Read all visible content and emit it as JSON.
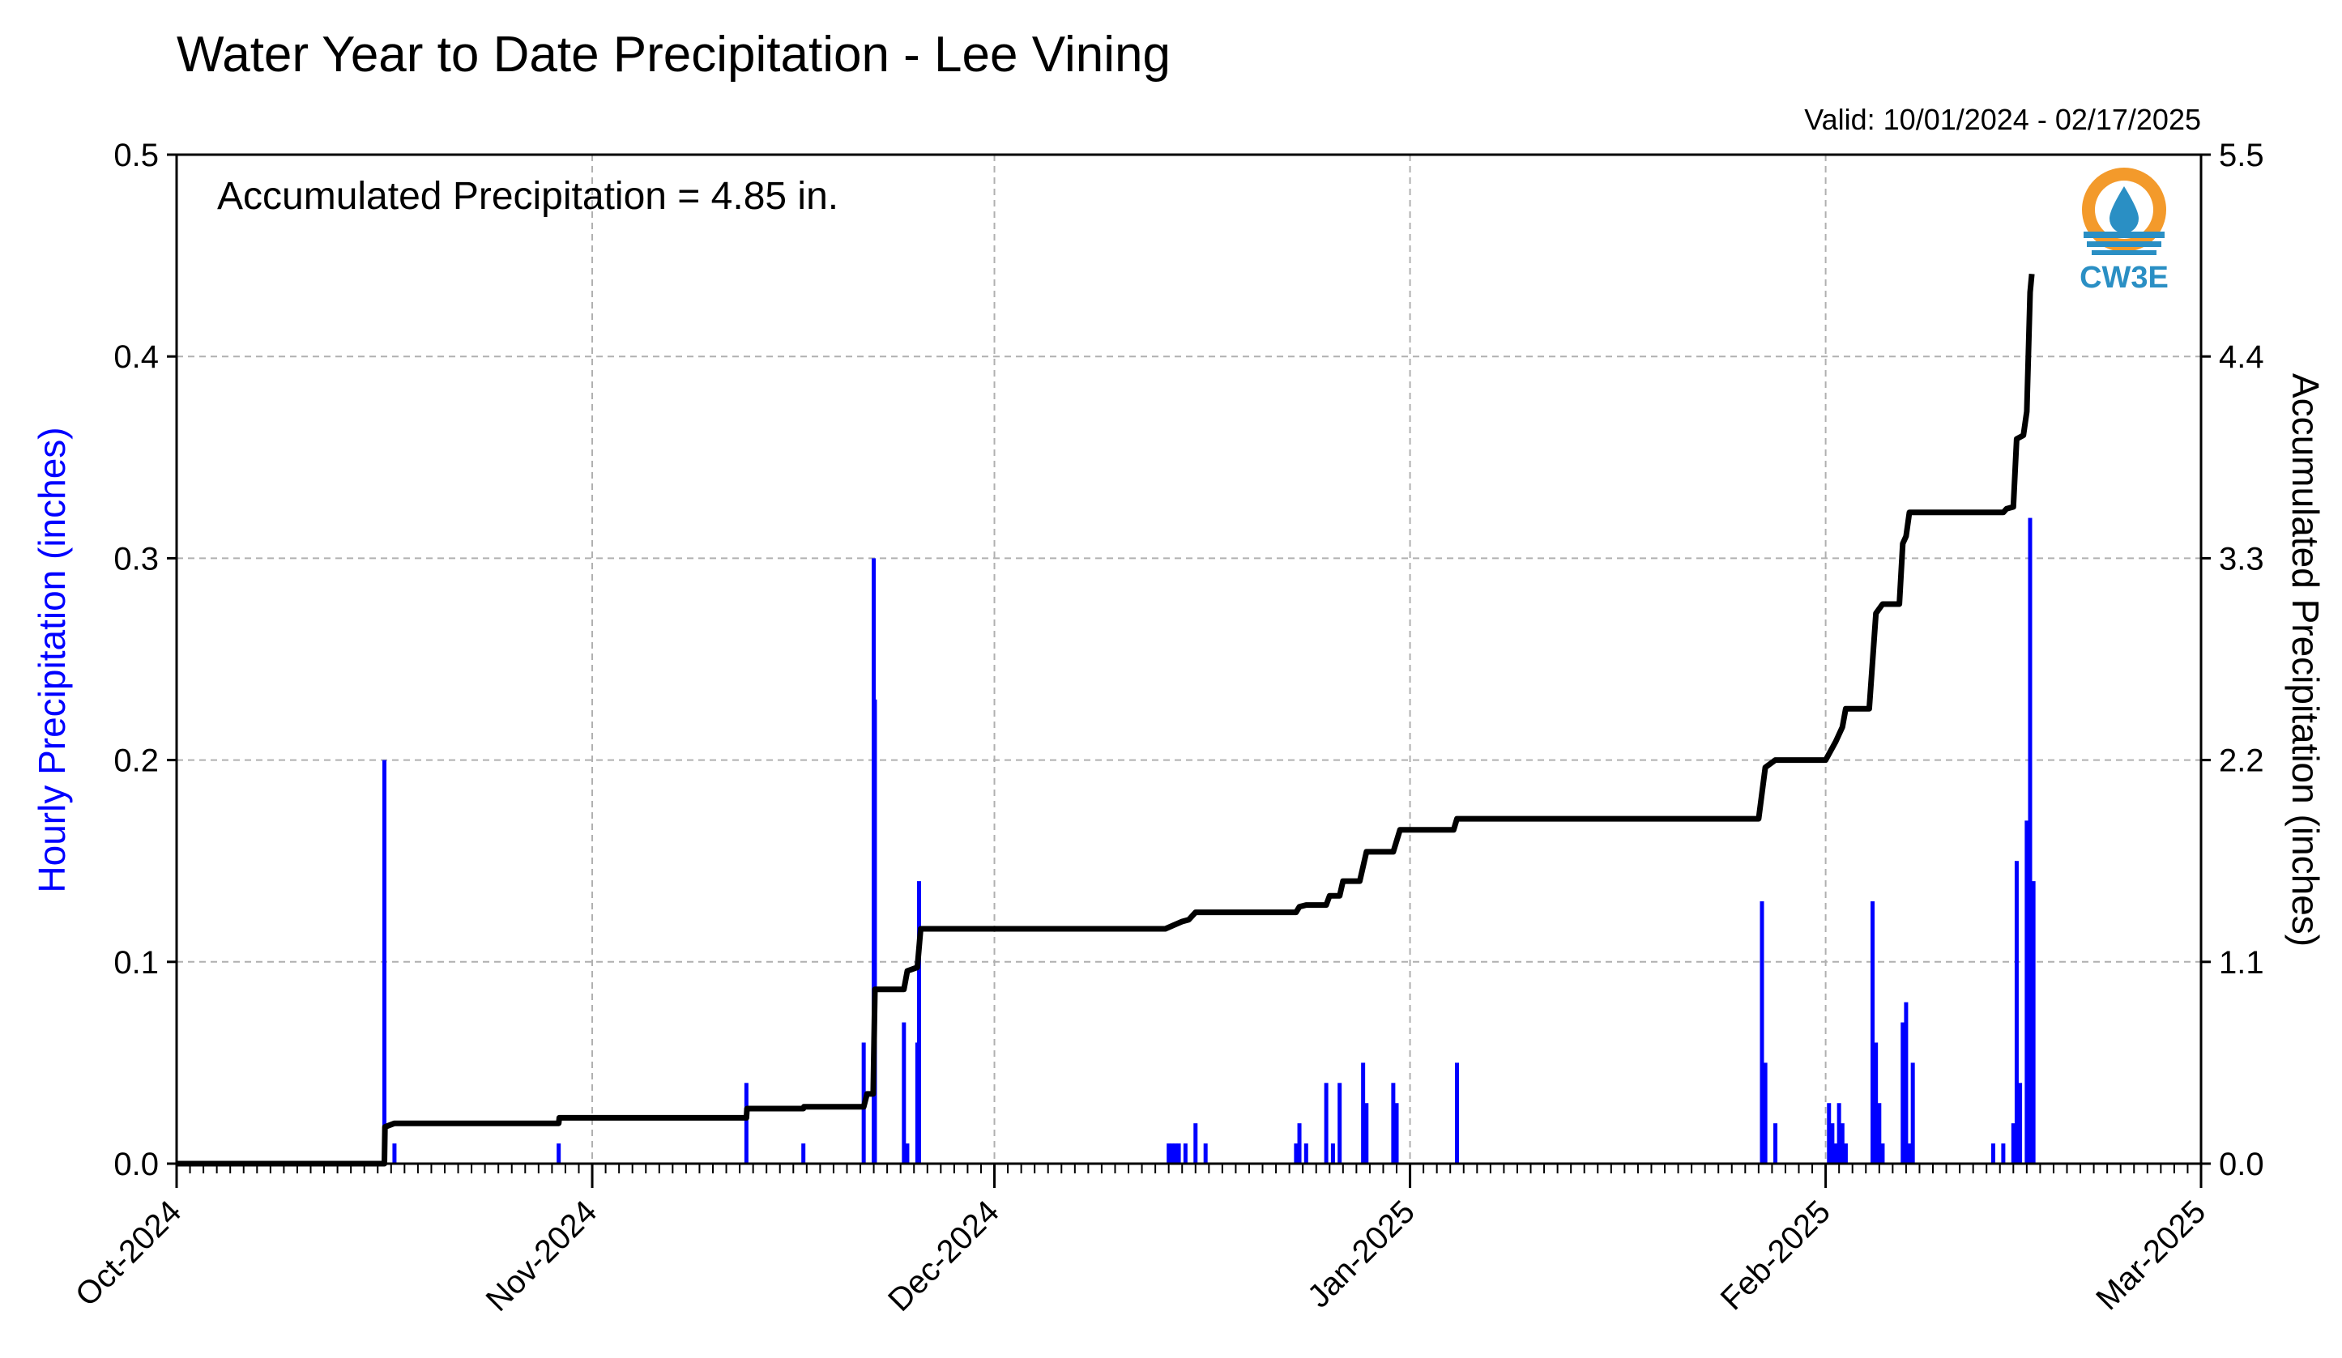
{
  "chart_data": {
    "type": "bar+line",
    "title": "Water Year to Date Precipitation - Lee Vining",
    "valid_text": "Valid: 10/01/2024 - 02/17/2025",
    "annotation": "Accumulated Precipitation = 4.85 in.",
    "ylabel_left": "Hourly Precipitation (inches)",
    "ylabel_right": "Accumulated Precipitation (inches)",
    "ylim_left": [
      0,
      0.5
    ],
    "ylim_right": [
      0,
      5.5
    ],
    "yticks_left": [
      "0.0",
      "0.1",
      "0.2",
      "0.3",
      "0.4",
      "0.5"
    ],
    "yticks_right": [
      "0.0",
      "1.1",
      "2.2",
      "3.3",
      "4.4",
      "5.5"
    ],
    "xlim": [
      "2024-10-01",
      "2025-03-01"
    ],
    "xticks": [
      "Oct-2024",
      "Nov-2024",
      "Dec-2024",
      "Jan-2025",
      "Feb-2025",
      "Mar-2025"
    ],
    "grid": true,
    "logo_text": "CW3E",
    "colors": {
      "hourly": "#0000ff",
      "accumulated": "#000000",
      "grid": "#b0b0b0",
      "logo_orange": "#f39a2b",
      "logo_blue": "#2a8fc4"
    },
    "series": [
      {
        "name": "Hourly Precipitation",
        "axis": "left",
        "kind": "bar",
        "points": [
          [
            "2024-10-16 12:00",
            0.2
          ],
          [
            "2024-10-17 06:00",
            0.01
          ],
          [
            "2024-10-29 12:00",
            0.01
          ],
          [
            "2024-11-12 12:00",
            0.04
          ],
          [
            "2024-11-16 18:00",
            0.01
          ],
          [
            "2024-11-21 06:00",
            0.06
          ],
          [
            "2024-11-22 00:00",
            0.3
          ],
          [
            "2024-11-22 02:00",
            0.23
          ],
          [
            "2024-11-24 06:00",
            0.07
          ],
          [
            "2024-11-24 12:00",
            0.01
          ],
          [
            "2024-11-25 06:00",
            0.06
          ],
          [
            "2024-11-25 09:00",
            0.14
          ],
          [
            "2024-12-14 00:00",
            0.01
          ],
          [
            "2024-12-14 06:00",
            0.01
          ],
          [
            "2024-12-14 12:00",
            0.01
          ],
          [
            "2024-12-14 18:00",
            0.01
          ],
          [
            "2024-12-15 06:00",
            0.01
          ],
          [
            "2024-12-16 00:00",
            0.02
          ],
          [
            "2024-12-16 18:00",
            0.01
          ],
          [
            "2024-12-23 12:00",
            0.01
          ],
          [
            "2024-12-23 18:00",
            0.02
          ],
          [
            "2024-12-24 06:00",
            0.01
          ],
          [
            "2024-12-25 18:00",
            0.04
          ],
          [
            "2024-12-26 06:00",
            0.01
          ],
          [
            "2024-12-26 18:00",
            0.04
          ],
          [
            "2024-12-28 12:00",
            0.05
          ],
          [
            "2024-12-28 18:00",
            0.03
          ],
          [
            "2024-12-30 18:00",
            0.04
          ],
          [
            "2024-12-31 00:00",
            0.03
          ],
          [
            "2025-01-04 12:00",
            0.05
          ],
          [
            "2025-01-27 06:00",
            0.13
          ],
          [
            "2025-01-27 12:00",
            0.05
          ],
          [
            "2025-01-28 06:00",
            0.02
          ],
          [
            "2025-02-01 06:00",
            0.03
          ],
          [
            "2025-02-01 12:00",
            0.02
          ],
          [
            "2025-02-01 18:00",
            0.01
          ],
          [
            "2025-02-02 00:00",
            0.03
          ],
          [
            "2025-02-02 06:00",
            0.02
          ],
          [
            "2025-02-02 12:00",
            0.01
          ],
          [
            "2025-02-04 12:00",
            0.13
          ],
          [
            "2025-02-04 18:00",
            0.06
          ],
          [
            "2025-02-05 00:00",
            0.03
          ],
          [
            "2025-02-05 06:00",
            0.01
          ],
          [
            "2025-02-06 18:00",
            0.07
          ],
          [
            "2025-02-07 00:00",
            0.08
          ],
          [
            "2025-02-07 06:00",
            0.01
          ],
          [
            "2025-02-07 12:00",
            0.05
          ],
          [
            "2025-02-13 12:00",
            0.01
          ],
          [
            "2025-02-14 06:00",
            0.01
          ],
          [
            "2025-02-15 00:00",
            0.02
          ],
          [
            "2025-02-15 06:00",
            0.15
          ],
          [
            "2025-02-15 12:00",
            0.04
          ],
          [
            "2025-02-16 00:00",
            0.17
          ],
          [
            "2025-02-16 06:00",
            0.32
          ],
          [
            "2025-02-16 12:00",
            0.14
          ]
        ]
      },
      {
        "name": "Accumulated Precipitation",
        "axis": "right",
        "kind": "step-line",
        "points": [
          [
            "2024-10-01 00:00",
            0.0
          ],
          [
            "2024-10-16 12:00",
            0.0
          ],
          [
            "2024-10-16 13:00",
            0.2
          ],
          [
            "2024-10-17 06:00",
            0.22
          ],
          [
            "2024-10-29 12:00",
            0.22
          ],
          [
            "2024-10-29 13:00",
            0.25
          ],
          [
            "2024-11-12 12:00",
            0.25
          ],
          [
            "2024-11-12 13:00",
            0.3
          ],
          [
            "2024-11-16 18:00",
            0.3
          ],
          [
            "2024-11-16 19:00",
            0.31
          ],
          [
            "2024-11-21 06:00",
            0.31
          ],
          [
            "2024-11-21 12:00",
            0.38
          ],
          [
            "2024-11-21 23:00",
            0.38
          ],
          [
            "2024-11-22 02:00",
            0.95
          ],
          [
            "2024-11-24 06:00",
            0.95
          ],
          [
            "2024-11-24 12:00",
            1.05
          ],
          [
            "2024-11-25 06:00",
            1.07
          ],
          [
            "2024-11-25 12:00",
            1.28
          ],
          [
            "2024-12-13 18:00",
            1.28
          ],
          [
            "2024-12-15 00:00",
            1.32
          ],
          [
            "2024-12-15 12:00",
            1.33
          ],
          [
            "2024-12-16 00:00",
            1.37
          ],
          [
            "2024-12-23 12:00",
            1.37
          ],
          [
            "2024-12-23 18:00",
            1.4
          ],
          [
            "2024-12-24 06:00",
            1.41
          ],
          [
            "2024-12-25 18:00",
            1.41
          ],
          [
            "2024-12-26 00:00",
            1.46
          ],
          [
            "2024-12-26 18:00",
            1.46
          ],
          [
            "2024-12-27 00:00",
            1.54
          ],
          [
            "2024-12-28 06:00",
            1.54
          ],
          [
            "2024-12-28 18:00",
            1.7
          ],
          [
            "2024-12-30 18:00",
            1.7
          ],
          [
            "2024-12-31 06:00",
            1.82
          ],
          [
            "2025-01-04 06:00",
            1.82
          ],
          [
            "2025-01-04 12:00",
            1.88
          ],
          [
            "2025-01-27 00:00",
            1.88
          ],
          [
            "2025-01-27 12:00",
            2.16
          ],
          [
            "2025-01-28 06:00",
            2.2
          ],
          [
            "2025-02-01 00:00",
            2.2
          ],
          [
            "2025-02-01 18:00",
            2.3
          ],
          [
            "2025-02-02 06:00",
            2.38
          ],
          [
            "2025-02-02 12:00",
            2.48
          ],
          [
            "2025-02-04 06:00",
            2.48
          ],
          [
            "2025-02-04 18:00",
            3.0
          ],
          [
            "2025-02-05 06:00",
            3.05
          ],
          [
            "2025-02-06 12:00",
            3.05
          ],
          [
            "2025-02-06 18:00",
            3.38
          ],
          [
            "2025-02-07 00:00",
            3.42
          ],
          [
            "2025-02-07 06:00",
            3.55
          ],
          [
            "2025-02-14 06:00",
            3.55
          ],
          [
            "2025-02-14 12:00",
            3.57
          ],
          [
            "2025-02-15 00:00",
            3.58
          ],
          [
            "2025-02-15 06:00",
            3.95
          ],
          [
            "2025-02-15 18:00",
            3.97
          ],
          [
            "2025-02-16 00:00",
            4.1
          ],
          [
            "2025-02-16 06:00",
            4.75
          ],
          [
            "2025-02-16 09:00",
            4.85
          ]
        ]
      }
    ]
  }
}
